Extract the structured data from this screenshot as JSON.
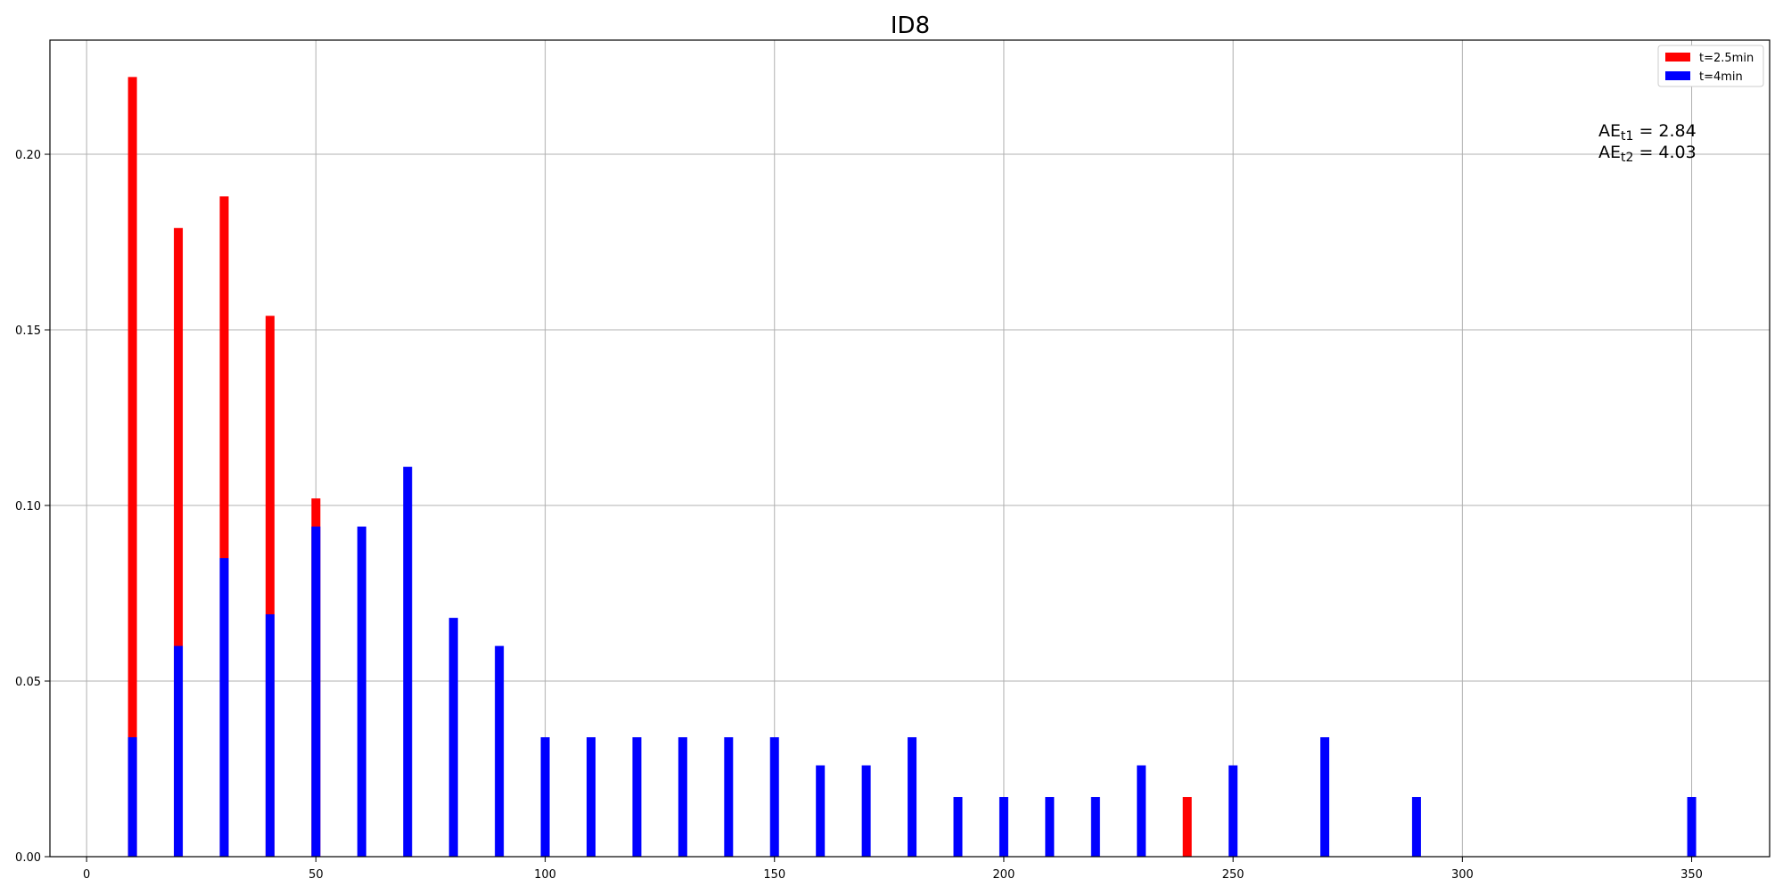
{
  "chart_data": {
    "type": "bar",
    "title": "ID8",
    "xlabel": "",
    "ylabel": "",
    "xlim": [
      -8,
      367
    ],
    "ylim": [
      0,
      0.2325
    ],
    "xticks": [
      0,
      50,
      100,
      150,
      200,
      250,
      300,
      350
    ],
    "yticks": [
      0.0,
      0.05,
      0.1,
      0.15,
      0.2
    ],
    "xtick_labels": [
      "0",
      "50",
      "100",
      "150",
      "200",
      "250",
      "300",
      "350"
    ],
    "ytick_labels": [
      "0.00",
      "0.05",
      "0.10",
      "0.15",
      "0.20"
    ],
    "grid": true,
    "legend_position": "top-right",
    "series": [
      {
        "name": "t=2.5min",
        "color": "#ff0000",
        "x": [
          10,
          20,
          30,
          40,
          50,
          60,
          70,
          80,
          90,
          100,
          110,
          120,
          130,
          140,
          150,
          160,
          170,
          180,
          190,
          200,
          210,
          220,
          230,
          240,
          250,
          270,
          290,
          350
        ],
        "values": [
          0.222,
          0.179,
          0.188,
          0.154,
          0.102,
          0,
          0,
          0,
          0,
          0,
          0,
          0,
          0,
          0,
          0,
          0,
          0,
          0,
          0,
          0,
          0,
          0,
          0,
          0.017,
          0,
          0,
          0,
          0
        ]
      },
      {
        "name": "t=4min",
        "color": "#0000ff",
        "x": [
          10,
          20,
          30,
          40,
          50,
          60,
          70,
          80,
          90,
          100,
          110,
          120,
          130,
          140,
          150,
          160,
          170,
          180,
          190,
          200,
          210,
          220,
          230,
          240,
          250,
          270,
          290,
          350
        ],
        "values": [
          0.034,
          0.06,
          0.085,
          0.069,
          0.094,
          0.094,
          0.111,
          0.068,
          0.06,
          0.034,
          0.034,
          0.034,
          0.034,
          0.034,
          0.034,
          0.026,
          0.026,
          0.034,
          0.017,
          0.017,
          0.017,
          0.017,
          0.026,
          0,
          0.026,
          0.034,
          0.017,
          0.017
        ]
      }
    ],
    "annotations": [
      {
        "base": "AE",
        "sub": "t1",
        "rest": " = 2.84"
      },
      {
        "base": "AE",
        "sub": "t2",
        "rest": " = 4.03"
      }
    ]
  }
}
